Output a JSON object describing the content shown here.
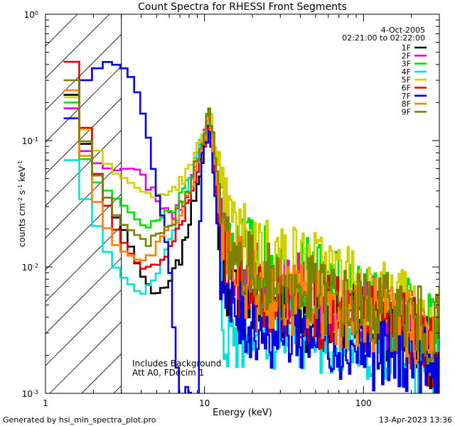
{
  "chart_data": {
    "type": "line",
    "title": "Count Spectra for RHESSI Front Segments",
    "xlabel": "Energy (keV)",
    "ylabel_parts": [
      "counts cm",
      "-2",
      " s",
      "-1",
      " keV",
      "-1"
    ],
    "xscale": "log",
    "yscale": "log",
    "xlim": [
      1,
      300
    ],
    "ylim": [
      0.001,
      1
    ],
    "x_ticks": [
      {
        "value": 1,
        "label": "1"
      },
      {
        "value": 10,
        "label": "10"
      },
      {
        "value": 100,
        "label": "100"
      }
    ],
    "y_ticks": [
      {
        "value": 1,
        "base": "10",
        "exp": "0"
      },
      {
        "value": 0.1,
        "base": "10",
        "exp": "-1"
      },
      {
        "value": 0.01,
        "base": "10",
        "exp": "-2"
      },
      {
        "value": 0.001,
        "base": "10",
        "exp": "-3"
      }
    ],
    "date": "4-Oct-2005",
    "time_range": "02:21:00 to 02:22:00",
    "shaded_region_xmax_kev": 3.0,
    "annotation_lines": [
      "Includes Background",
      "Att A0, FDecim 1"
    ],
    "series": [
      {
        "name": "1F",
        "color": "#000000",
        "pts": [
          [
            1.3,
            0.23
          ],
          [
            1.5,
            0.13
          ],
          [
            1.7,
            0.08
          ],
          [
            2.0,
            0.05
          ],
          [
            2.3,
            0.035
          ],
          [
            2.6,
            0.025
          ],
          [
            3.0,
            0.019
          ],
          [
            3.4,
            0.013
          ],
          [
            3.8,
            0.009
          ],
          [
            4.3,
            0.007
          ],
          [
            4.8,
            0.0062
          ],
          [
            5.4,
            0.006
          ],
          [
            6.0,
            0.008
          ],
          [
            7.0,
            0.012
          ],
          [
            8.0,
            0.025
          ],
          [
            9.0,
            0.05
          ],
          [
            10.0,
            0.1
          ],
          [
            10.5,
            0.14
          ],
          [
            11.0,
            0.11
          ],
          [
            12.0,
            0.025
          ],
          [
            13.0,
            0.01
          ],
          [
            15.0,
            0.006
          ],
          [
            20.0,
            0.005
          ],
          [
            30.0,
            0.005
          ],
          [
            50.0,
            0.004
          ],
          [
            80.0,
            0.004
          ],
          [
            130.0,
            0.0035
          ],
          [
            200.0,
            0.003
          ],
          [
            280.0,
            0.0018
          ]
        ]
      },
      {
        "name": "2F",
        "color": "#e000e0",
        "pts": [
          [
            1.3,
            0.18
          ],
          [
            1.5,
            0.1
          ],
          [
            1.7,
            0.075
          ],
          [
            2.0,
            0.065
          ],
          [
            2.3,
            0.06
          ],
          [
            2.6,
            0.058
          ],
          [
            3.0,
            0.06
          ],
          [
            3.4,
            0.06
          ],
          [
            3.8,
            0.058
          ],
          [
            4.3,
            0.045
          ],
          [
            4.8,
            0.035
          ],
          [
            5.4,
            0.028
          ],
          [
            6.0,
            0.025
          ],
          [
            7.0,
            0.03
          ],
          [
            8.0,
            0.045
          ],
          [
            9.0,
            0.07
          ],
          [
            10.0,
            0.12
          ],
          [
            10.5,
            0.16
          ],
          [
            11.0,
            0.12
          ],
          [
            12.0,
            0.04
          ],
          [
            13.0,
            0.02
          ],
          [
            15.0,
            0.012
          ],
          [
            20.0,
            0.008
          ],
          [
            30.0,
            0.007
          ],
          [
            50.0,
            0.006
          ],
          [
            80.0,
            0.005
          ],
          [
            130.0,
            0.0045
          ],
          [
            200.0,
            0.0035
          ],
          [
            280.0,
            0.0025
          ]
        ]
      },
      {
        "name": "3F",
        "color": "#00e000",
        "pts": [
          [
            1.3,
            0.2
          ],
          [
            1.5,
            0.1
          ],
          [
            1.7,
            0.06
          ],
          [
            2.0,
            0.045
          ],
          [
            2.3,
            0.04
          ],
          [
            2.6,
            0.035
          ],
          [
            3.0,
            0.03
          ],
          [
            3.4,
            0.026
          ],
          [
            3.8,
            0.022
          ],
          [
            4.3,
            0.02
          ],
          [
            4.8,
            0.022
          ],
          [
            5.4,
            0.025
          ],
          [
            6.0,
            0.028
          ],
          [
            7.0,
            0.035
          ],
          [
            8.0,
            0.05
          ],
          [
            9.0,
            0.08
          ],
          [
            10.0,
            0.13
          ],
          [
            10.5,
            0.17
          ],
          [
            11.0,
            0.13
          ],
          [
            12.0,
            0.05
          ],
          [
            13.0,
            0.025
          ],
          [
            15.0,
            0.018
          ],
          [
            20.0,
            0.012
          ],
          [
            30.0,
            0.01
          ],
          [
            50.0,
            0.008
          ],
          [
            80.0,
            0.006
          ],
          [
            130.0,
            0.005
          ],
          [
            200.0,
            0.004
          ],
          [
            280.0,
            0.003
          ]
        ]
      },
      {
        "name": "4F",
        "color": "#00e0e0",
        "pts": [
          [
            1.3,
            0.07
          ],
          [
            1.5,
            0.045
          ],
          [
            1.7,
            0.03
          ],
          [
            2.0,
            0.02
          ],
          [
            2.3,
            0.013
          ],
          [
            2.6,
            0.01
          ],
          [
            3.0,
            0.008
          ],
          [
            3.4,
            0.007
          ],
          [
            3.8,
            0.006
          ],
          [
            4.3,
            0.0065
          ],
          [
            4.8,
            0.008
          ],
          [
            5.4,
            0.012
          ],
          [
            6.0,
            0.018
          ],
          [
            7.0,
            0.03
          ],
          [
            8.0,
            0.05
          ],
          [
            9.0,
            0.08
          ],
          [
            10.0,
            0.12
          ],
          [
            10.5,
            0.15
          ],
          [
            11.0,
            0.1
          ],
          [
            12.0,
            0.03
          ],
          [
            13.0,
            0.003
          ],
          [
            15.0,
            0.003
          ],
          [
            20.0,
            0.0035
          ],
          [
            30.0,
            0.003
          ],
          [
            50.0,
            0.003
          ],
          [
            80.0,
            0.0025
          ],
          [
            130.0,
            0.0025
          ],
          [
            200.0,
            0.002
          ],
          [
            280.0,
            0.0015
          ]
        ]
      },
      {
        "name": "5F",
        "color": "#d0d000",
        "pts": [
          [
            1.3,
            0.22
          ],
          [
            1.5,
            0.15
          ],
          [
            1.7,
            0.11
          ],
          [
            2.0,
            0.08
          ],
          [
            2.3,
            0.065
          ],
          [
            2.6,
            0.055
          ],
          [
            3.0,
            0.05
          ],
          [
            3.4,
            0.045
          ],
          [
            3.8,
            0.04
          ],
          [
            4.3,
            0.038
          ],
          [
            4.8,
            0.036
          ],
          [
            5.4,
            0.037
          ],
          [
            6.0,
            0.04
          ],
          [
            7.0,
            0.048
          ],
          [
            8.0,
            0.06
          ],
          [
            9.0,
            0.09
          ],
          [
            10.0,
            0.14
          ],
          [
            10.5,
            0.18
          ],
          [
            11.0,
            0.14
          ],
          [
            12.0,
            0.05
          ],
          [
            13.0,
            0.03
          ],
          [
            15.0,
            0.02
          ],
          [
            20.0,
            0.015
          ],
          [
            30.0,
            0.012
          ],
          [
            50.0,
            0.01
          ],
          [
            80.0,
            0.008
          ],
          [
            130.0,
            0.006
          ],
          [
            200.0,
            0.0045
          ],
          [
            280.0,
            0.0035
          ]
        ]
      },
      {
        "name": "6F",
        "color": "#e00000",
        "pts": [
          [
            1.3,
            0.42
          ],
          [
            1.5,
            0.2
          ],
          [
            1.7,
            0.1
          ],
          [
            2.0,
            0.05
          ],
          [
            2.3,
            0.03
          ],
          [
            2.6,
            0.02
          ],
          [
            3.0,
            0.015
          ],
          [
            3.4,
            0.012
          ],
          [
            3.8,
            0.01
          ],
          [
            4.3,
            0.009
          ],
          [
            4.8,
            0.01
          ],
          [
            5.4,
            0.012
          ],
          [
            6.0,
            0.015
          ],
          [
            7.0,
            0.022
          ],
          [
            8.0,
            0.035
          ],
          [
            9.0,
            0.06
          ],
          [
            10.0,
            0.1
          ],
          [
            10.5,
            0.14
          ],
          [
            11.0,
            0.1
          ],
          [
            12.0,
            0.03
          ],
          [
            13.0,
            0.012
          ],
          [
            15.0,
            0.008
          ],
          [
            20.0,
            0.006
          ],
          [
            30.0,
            0.005
          ],
          [
            50.0,
            0.0045
          ],
          [
            80.0,
            0.004
          ],
          [
            130.0,
            0.0035
          ],
          [
            200.0,
            0.003
          ],
          [
            280.0,
            0.002
          ]
        ]
      },
      {
        "name": "7F",
        "color": "#0000e0",
        "pts": [
          [
            1.3,
            0.15
          ],
          [
            1.5,
            0.25
          ],
          [
            1.7,
            0.33
          ],
          [
            2.0,
            0.38
          ],
          [
            2.3,
            0.42
          ],
          [
            2.6,
            0.4
          ],
          [
            3.0,
            0.37
          ],
          [
            3.4,
            0.3
          ],
          [
            3.8,
            0.2
          ],
          [
            4.3,
            0.1
          ],
          [
            4.8,
            0.05
          ],
          [
            5.4,
            0.02
          ],
          [
            6.0,
            0.007
          ],
          [
            6.5,
            0.002
          ],
          [
            6.8,
            0.001
          ],
          [
            9.0,
            0.001
          ],
          [
            9.3,
            0.06
          ],
          [
            10.0,
            0.1
          ],
          [
            10.5,
            0.12
          ],
          [
            11.0,
            0.08
          ],
          [
            12.0,
            0.02
          ],
          [
            13.0,
            0.006
          ],
          [
            15.0,
            0.004
          ],
          [
            20.0,
            0.0035
          ],
          [
            30.0,
            0.003
          ],
          [
            50.0,
            0.003
          ],
          [
            80.0,
            0.0025
          ],
          [
            130.0,
            0.002
          ],
          [
            200.0,
            0.002
          ],
          [
            280.0,
            0.0015
          ]
        ]
      },
      {
        "name": "8F",
        "color": "#ff8000",
        "pts": [
          [
            1.3,
            0.25
          ],
          [
            1.5,
            0.12
          ],
          [
            1.7,
            0.06
          ],
          [
            2.0,
            0.03
          ],
          [
            2.3,
            0.02
          ],
          [
            2.6,
            0.015
          ],
          [
            3.0,
            0.013
          ],
          [
            3.4,
            0.012
          ],
          [
            3.8,
            0.011
          ],
          [
            4.3,
            0.012
          ],
          [
            4.8,
            0.014
          ],
          [
            5.4,
            0.016
          ],
          [
            6.0,
            0.02
          ],
          [
            7.0,
            0.028
          ],
          [
            8.0,
            0.04
          ],
          [
            9.0,
            0.07
          ],
          [
            10.0,
            0.12
          ],
          [
            10.5,
            0.16
          ],
          [
            11.0,
            0.12
          ],
          [
            12.0,
            0.035
          ],
          [
            13.0,
            0.015
          ],
          [
            15.0,
            0.01
          ],
          [
            20.0,
            0.007
          ],
          [
            30.0,
            0.006
          ],
          [
            50.0,
            0.005
          ],
          [
            80.0,
            0.0045
          ],
          [
            130.0,
            0.004
          ],
          [
            200.0,
            0.0035
          ],
          [
            280.0,
            0.0025
          ]
        ]
      },
      {
        "name": "9F",
        "color": "#808000",
        "pts": [
          [
            1.3,
            0.3
          ],
          [
            1.5,
            0.15
          ],
          [
            1.7,
            0.08
          ],
          [
            2.0,
            0.05
          ],
          [
            2.3,
            0.035
          ],
          [
            2.6,
            0.026
          ],
          [
            3.0,
            0.021
          ],
          [
            3.4,
            0.019
          ],
          [
            3.8,
            0.017
          ],
          [
            4.3,
            0.016
          ],
          [
            4.8,
            0.017
          ],
          [
            5.4,
            0.019
          ],
          [
            6.0,
            0.022
          ],
          [
            7.0,
            0.03
          ],
          [
            8.0,
            0.045
          ],
          [
            9.0,
            0.08
          ],
          [
            10.0,
            0.13
          ],
          [
            10.5,
            0.17
          ],
          [
            11.0,
            0.13
          ],
          [
            12.0,
            0.045
          ],
          [
            13.0,
            0.02
          ],
          [
            15.0,
            0.013
          ],
          [
            20.0,
            0.009
          ],
          [
            30.0,
            0.007
          ],
          [
            50.0,
            0.006
          ],
          [
            80.0,
            0.005
          ],
          [
            130.0,
            0.0045
          ],
          [
            200.0,
            0.004
          ],
          [
            280.0,
            0.003
          ]
        ]
      }
    ]
  },
  "footer": {
    "generated_by": "Generated by hsi_min_spectra_plot.pro",
    "timestamp": "13-Apr-2023 13:36"
  }
}
